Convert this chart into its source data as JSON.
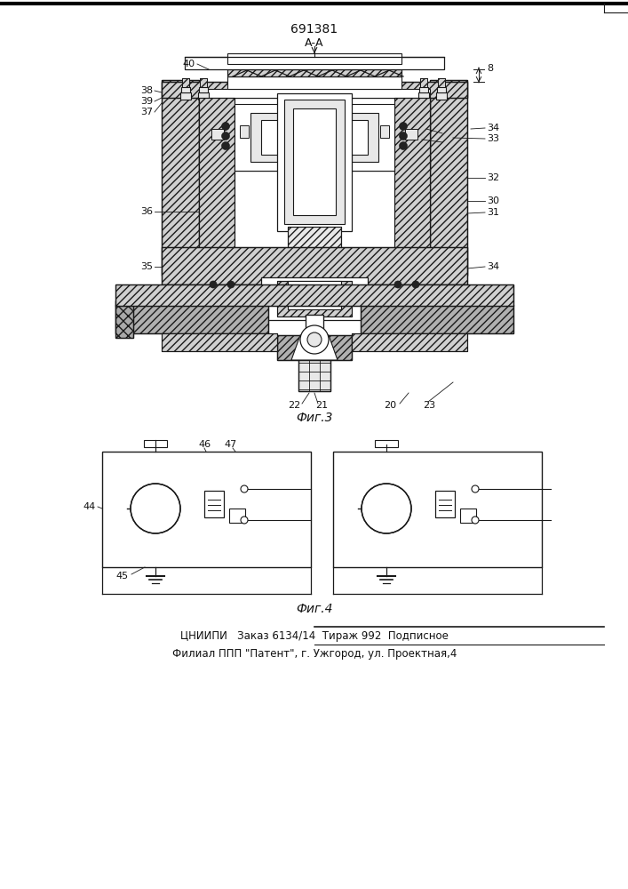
{
  "title": "691381",
  "fig3_label": "Фиг.3",
  "fig4_label": "Фиг.4",
  "bottom_line1": "ЦНИИПИ   Заказ 6134/14  Тираж 992  Подписное",
  "bottom_line2": "Филиал ППП \"Патент\", г. Ужгород, ул. Проектная,4",
  "lc": "#1a1a1a",
  "bg": "white"
}
